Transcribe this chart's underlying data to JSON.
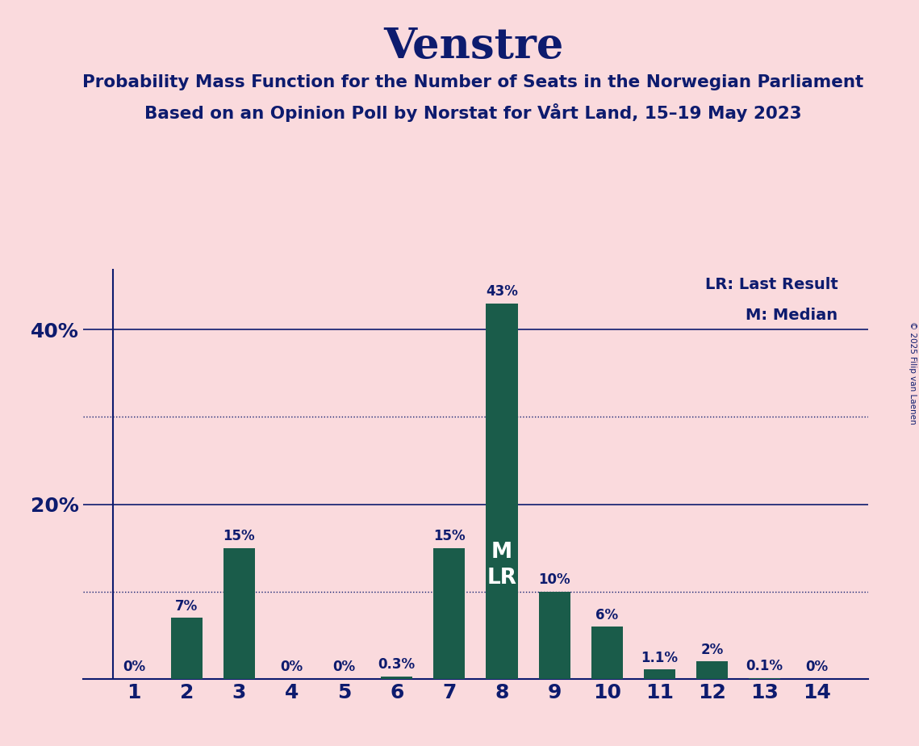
{
  "title": "Venstre",
  "subtitle1": "Probability Mass Function for the Number of Seats in the Norwegian Parliament",
  "subtitle2": "Based on an Opinion Poll by Norstat for Vårt Land, 15–19 May 2023",
  "copyright": "© 2025 Filip van Laenen",
  "categories": [
    1,
    2,
    3,
    4,
    5,
    6,
    7,
    8,
    9,
    10,
    11,
    12,
    13,
    14
  ],
  "values": [
    0,
    7,
    15,
    0,
    0,
    0.3,
    15,
    43,
    10,
    6,
    1.1,
    2,
    0.1,
    0
  ],
  "bar_color": "#1a5c4a",
  "background_color": "#fadadd",
  "text_color": "#0d1b6e",
  "ylim": [
    0,
    47
  ],
  "solid_gridlines": [
    20,
    40
  ],
  "dotted_gridlines": [
    10,
    30
  ],
  "legend_text1": "LR: Last Result",
  "legend_text2": "M: Median",
  "median_bar": 8,
  "last_result_bar": 8,
  "bar_labels": [
    "0%",
    "7%",
    "15%",
    "0%",
    "0%",
    "0.3%",
    "15%",
    "43%",
    "10%",
    "6%",
    "1.1%",
    "2%",
    "0.1%",
    "0%"
  ]
}
